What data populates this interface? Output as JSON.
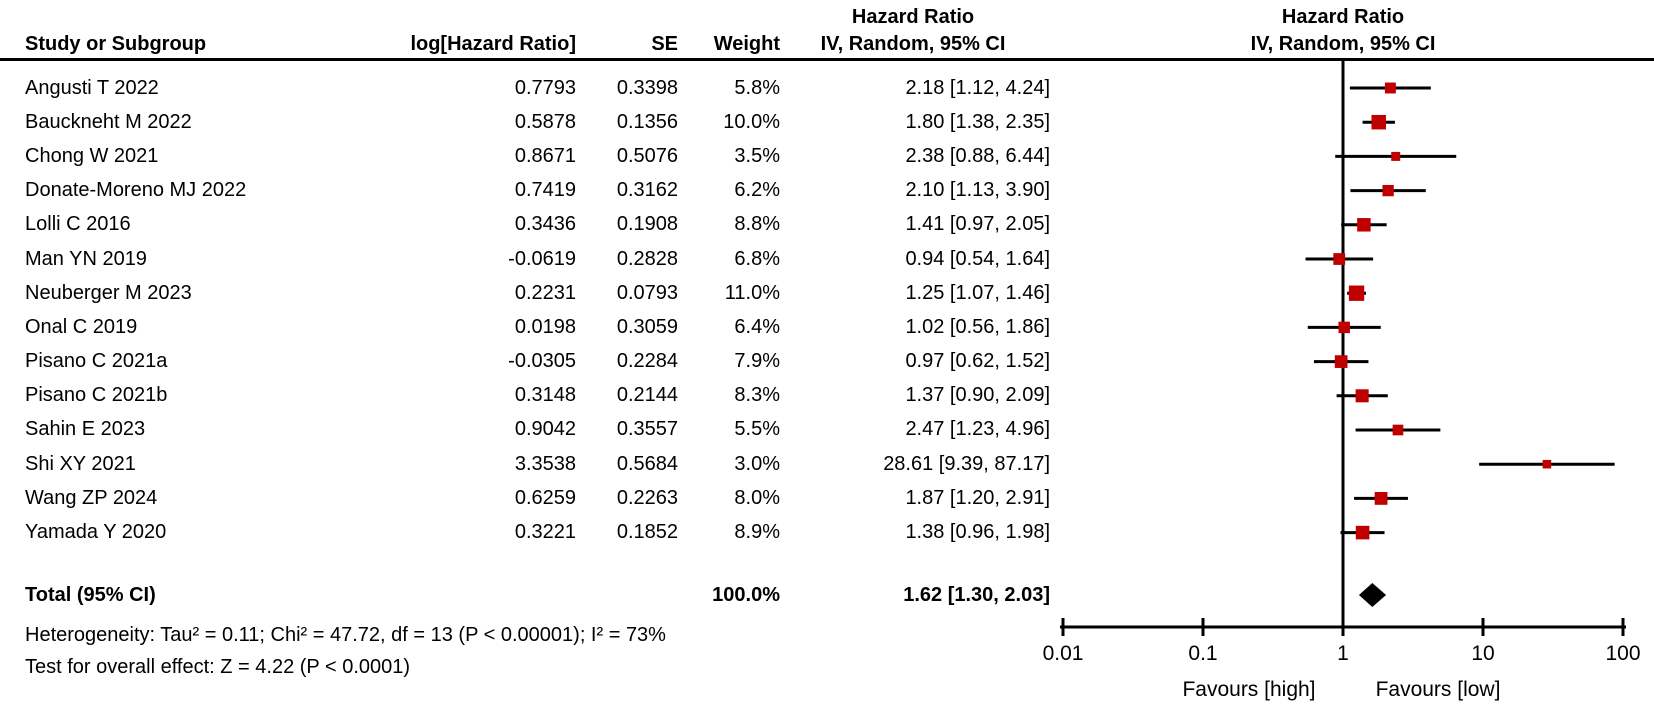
{
  "header": {
    "study_col": "Study or Subgroup",
    "loghr_col": "log[Hazard Ratio]",
    "se_col": "SE",
    "weight_col": "Weight",
    "ci_title": "Hazard Ratio",
    "ci_subtitle": "IV, Random, 95% CI",
    "plot_title": "Hazard Ratio",
    "plot_subtitle": "IV, Random, 95% CI"
  },
  "footer": {
    "heterogeneity": "Heterogeneity: Tau² = 0.11; Chi² = 47.72, df = 13 (P < 0.00001); I² = 73%",
    "overall_effect": "Test for overall effect: Z = 4.22 (P < 0.0001)"
  },
  "chart_data": {
    "type": "forest",
    "scale": "log10",
    "xlim": [
      0.01,
      100
    ],
    "x_ticks": [
      "0.01",
      "0.1",
      "1",
      "10",
      "100"
    ],
    "null_line": 1,
    "favours_left": "Favours [high]",
    "favours_right": "Favours [low]",
    "marker_color": "#C00000",
    "line_color": "#000000",
    "studies": [
      {
        "name": "Angusti T 2022",
        "loghr": "0.7793",
        "se": "0.3398",
        "weight": "5.8%",
        "ci_label": "2.18 [1.12, 4.24]",
        "hr": 2.18,
        "lo": 1.12,
        "hi": 4.24,
        "w": 5.8
      },
      {
        "name": "Bauckneht M 2022",
        "loghr": "0.5878",
        "se": "0.1356",
        "weight": "10.0%",
        "ci_label": "1.80 [1.38, 2.35]",
        "hr": 1.8,
        "lo": 1.38,
        "hi": 2.35,
        "w": 10.0
      },
      {
        "name": "Chong W 2021",
        "loghr": "0.8671",
        "se": "0.5076",
        "weight": "3.5%",
        "ci_label": "2.38 [0.88, 6.44]",
        "hr": 2.38,
        "lo": 0.88,
        "hi": 6.44,
        "w": 3.5
      },
      {
        "name": "Donate-Moreno MJ 2022",
        "loghr": "0.7419",
        "se": "0.3162",
        "weight": "6.2%",
        "ci_label": "2.10 [1.13, 3.90]",
        "hr": 2.1,
        "lo": 1.13,
        "hi": 3.9,
        "w": 6.2
      },
      {
        "name": "Lolli C 2016",
        "loghr": "0.3436",
        "se": "0.1908",
        "weight": "8.8%",
        "ci_label": "1.41 [0.97, 2.05]",
        "hr": 1.41,
        "lo": 0.97,
        "hi": 2.05,
        "w": 8.8
      },
      {
        "name": "Man YN 2019",
        "loghr": "-0.0619",
        "se": "0.2828",
        "weight": "6.8%",
        "ci_label": "0.94 [0.54, 1.64]",
        "hr": 0.94,
        "lo": 0.54,
        "hi": 1.64,
        "w": 6.8
      },
      {
        "name": "Neuberger M 2023",
        "loghr": "0.2231",
        "se": "0.0793",
        "weight": "11.0%",
        "ci_label": "1.25 [1.07, 1.46]",
        "hr": 1.25,
        "lo": 1.07,
        "hi": 1.46,
        "w": 11.0
      },
      {
        "name": "Onal C 2019",
        "loghr": "0.0198",
        "se": "0.3059",
        "weight": "6.4%",
        "ci_label": "1.02 [0.56, 1.86]",
        "hr": 1.02,
        "lo": 0.56,
        "hi": 1.86,
        "w": 6.4
      },
      {
        "name": "Pisano C 2021a",
        "loghr": "-0.0305",
        "se": "0.2284",
        "weight": "7.9%",
        "ci_label": "0.97 [0.62, 1.52]",
        "hr": 0.97,
        "lo": 0.62,
        "hi": 1.52,
        "w": 7.9
      },
      {
        "name": "Pisano C 2021b",
        "loghr": "0.3148",
        "se": "0.2144",
        "weight": "8.3%",
        "ci_label": "1.37 [0.90, 2.09]",
        "hr": 1.37,
        "lo": 0.9,
        "hi": 2.09,
        "w": 8.3
      },
      {
        "name": "Sahin E 2023",
        "loghr": "0.9042",
        "se": "0.3557",
        "weight": "5.5%",
        "ci_label": "2.47 [1.23, 4.96]",
        "hr": 2.47,
        "lo": 1.23,
        "hi": 4.96,
        "w": 5.5
      },
      {
        "name": "Shi XY 2021",
        "loghr": "3.3538",
        "se": "0.5684",
        "weight": "3.0%",
        "ci_label": "28.61 [9.39, 87.17]",
        "hr": 28.61,
        "lo": 9.39,
        "hi": 87.17,
        "w": 3.0
      },
      {
        "name": "Wang ZP 2024",
        "loghr": "0.6259",
        "se": "0.2263",
        "weight": "8.0%",
        "ci_label": "1.87 [1.20, 2.91]",
        "hr": 1.87,
        "lo": 1.2,
        "hi": 2.91,
        "w": 8.0
      },
      {
        "name": "Yamada Y 2020",
        "loghr": "0.3221",
        "se": "0.1852",
        "weight": "8.9%",
        "ci_label": "1.38 [0.96, 1.98]",
        "hr": 1.38,
        "lo": 0.96,
        "hi": 1.98,
        "w": 8.9
      }
    ],
    "total": {
      "label": "Total (95% CI)",
      "weight": "100.0%",
      "ci_label": "1.62 [1.30, 2.03]",
      "hr": 1.62,
      "lo": 1.3,
      "hi": 2.03
    }
  }
}
